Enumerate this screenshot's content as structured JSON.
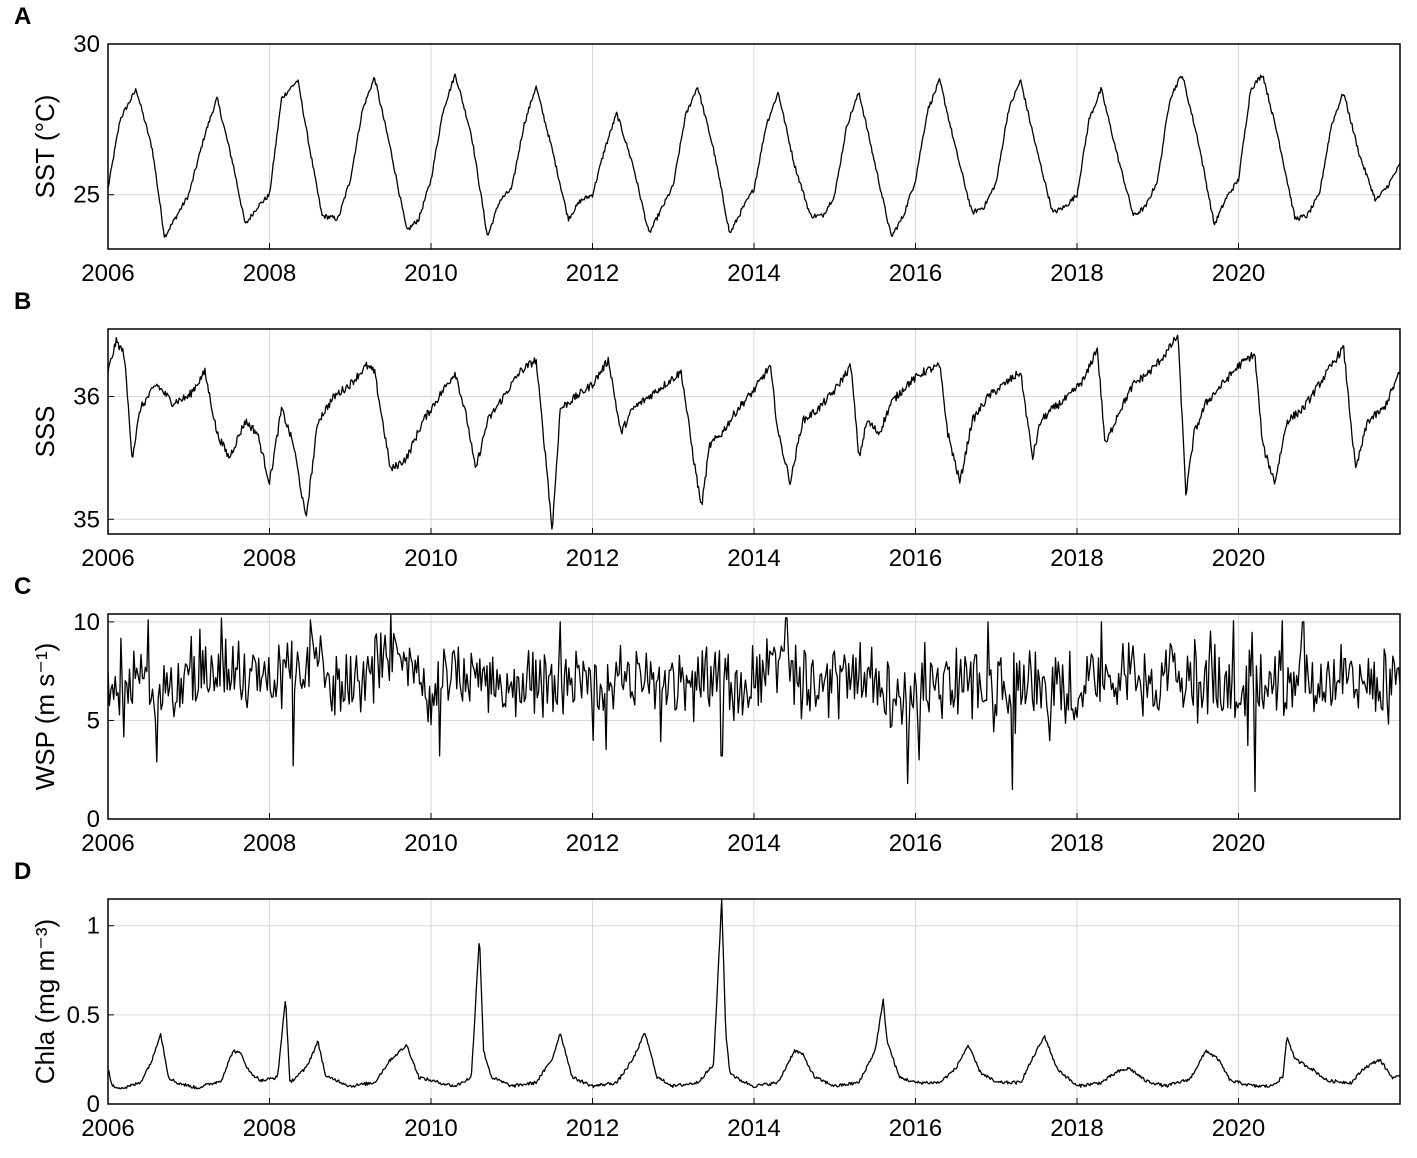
{
  "chart_data": [
    {
      "type": "line",
      "panel_letter": "A",
      "ylabel": "SST (°C)",
      "xlim": [
        2006,
        2022
      ],
      "ylim": [
        23.2,
        30
      ],
      "xticks": [
        2006,
        2008,
        2010,
        2012,
        2014,
        2016,
        2018,
        2020
      ],
      "yticks": [
        25,
        30
      ],
      "grid": true,
      "series": [
        {
          "x": [
            2006.0,
            2006.15,
            2006.35,
            2006.55,
            2006.7,
            2006.85,
            2007.0,
            2007.2,
            2007.35,
            2007.55,
            2007.7,
            2007.85,
            2008.0,
            2008.15,
            2008.35,
            2008.5,
            2008.65,
            2008.85,
            2009.0,
            2009.15,
            2009.3,
            2009.5,
            2009.7,
            2009.85,
            2010.0,
            2010.15,
            2010.3,
            2010.5,
            2010.7,
            2010.85,
            2011.0,
            2011.15,
            2011.3,
            2011.5,
            2011.7,
            2011.85,
            2012.0,
            2012.15,
            2012.3,
            2012.5,
            2012.7,
            2012.85,
            2013.0,
            2013.15,
            2013.3,
            2013.5,
            2013.7,
            2013.85,
            2014.0,
            2014.15,
            2014.3,
            2014.5,
            2014.7,
            2014.85,
            2015.0,
            2015.15,
            2015.3,
            2015.5,
            2015.7,
            2015.85,
            2016.0,
            2016.15,
            2016.3,
            2016.5,
            2016.7,
            2016.85,
            2017.0,
            2017.15,
            2017.3,
            2017.5,
            2017.7,
            2017.85,
            2018.0,
            2018.15,
            2018.3,
            2018.5,
            2018.7,
            2018.85,
            2019.0,
            2019.15,
            2019.3,
            2019.5,
            2019.7,
            2019.85,
            2020.0,
            2020.15,
            2020.3,
            2020.5,
            2020.7,
            2020.85,
            2021.0,
            2021.15,
            2021.3,
            2021.5,
            2021.7,
            2021.85,
            2022.0
          ],
          "y": [
            25.2,
            27.5,
            28.5,
            26.5,
            23.6,
            24.3,
            25.0,
            27.0,
            28.2,
            26.0,
            24.0,
            24.6,
            25.0,
            28.2,
            28.8,
            26.5,
            24.3,
            24.2,
            25.5,
            27.8,
            28.9,
            26.5,
            23.8,
            24.2,
            25.5,
            27.8,
            29.0,
            27.0,
            23.6,
            24.8,
            25.2,
            27.3,
            28.6,
            26.5,
            24.2,
            24.8,
            25.0,
            26.5,
            27.7,
            26.0,
            23.7,
            24.5,
            25.3,
            27.6,
            28.6,
            26.5,
            23.7,
            24.5,
            25.2,
            27.3,
            28.4,
            26.0,
            24.3,
            24.3,
            25.0,
            27.3,
            28.4,
            26.0,
            23.6,
            24.3,
            25.5,
            27.8,
            28.8,
            26.5,
            24.4,
            24.6,
            25.4,
            27.8,
            28.8,
            26.5,
            24.4,
            24.6,
            25.0,
            27.5,
            28.5,
            26.3,
            24.3,
            24.6,
            25.5,
            28.2,
            29.0,
            26.8,
            24.0,
            24.9,
            25.5,
            28.5,
            29.0,
            26.8,
            24.2,
            24.3,
            25.0,
            27.3,
            28.4,
            26.3,
            24.8,
            25.3,
            26.0
          ]
        }
      ]
    },
    {
      "type": "line",
      "panel_letter": "B",
      "ylabel": "SSS",
      "xlim": [
        2006,
        2022
      ],
      "ylim": [
        34.88,
        36.55
      ],
      "xticks": [
        2006,
        2008,
        2010,
        2012,
        2014,
        2016,
        2018,
        2020
      ],
      "yticks": [
        35,
        36
      ],
      "grid": true,
      "series": [
        {
          "x": [
            2006.0,
            2006.1,
            2006.2,
            2006.3,
            2006.4,
            2006.6,
            2006.8,
            2007.0,
            2007.2,
            2007.35,
            2007.5,
            2007.7,
            2007.85,
            2008.0,
            2008.15,
            2008.3,
            2008.45,
            2008.6,
            2008.8,
            2009.0,
            2009.2,
            2009.3,
            2009.5,
            2009.7,
            2009.9,
            2010.1,
            2010.3,
            2010.45,
            2010.55,
            2010.7,
            2010.9,
            2011.1,
            2011.3,
            2011.45,
            2011.5,
            2011.6,
            2011.8,
            2012.0,
            2012.2,
            2012.35,
            2012.5,
            2012.7,
            2012.9,
            2013.1,
            2013.25,
            2013.35,
            2013.45,
            2013.6,
            2013.8,
            2014.0,
            2014.2,
            2014.3,
            2014.45,
            2014.6,
            2014.8,
            2015.0,
            2015.2,
            2015.3,
            2015.4,
            2015.55,
            2015.7,
            2015.9,
            2016.1,
            2016.3,
            2016.4,
            2016.55,
            2016.7,
            2016.9,
            2017.1,
            2017.3,
            2017.45,
            2017.55,
            2017.7,
            2017.9,
            2018.1,
            2018.25,
            2018.35,
            2018.5,
            2018.7,
            2018.9,
            2019.1,
            2019.25,
            2019.35,
            2019.45,
            2019.6,
            2019.8,
            2020.0,
            2020.2,
            2020.3,
            2020.45,
            2020.6,
            2020.8,
            2021.0,
            2021.2,
            2021.3,
            2021.45,
            2021.6,
            2021.8,
            2022.0
          ],
          "y": [
            36.2,
            36.45,
            36.35,
            35.5,
            35.9,
            36.1,
            35.95,
            36.0,
            36.2,
            35.7,
            35.5,
            35.8,
            35.7,
            35.3,
            35.9,
            35.6,
            35.0,
            35.8,
            36.0,
            36.1,
            36.25,
            36.2,
            35.4,
            35.5,
            35.8,
            36.0,
            36.2,
            35.8,
            35.4,
            35.8,
            36.0,
            36.2,
            36.3,
            35.3,
            34.9,
            35.9,
            36.0,
            36.1,
            36.3,
            35.7,
            35.9,
            36.0,
            36.1,
            36.2,
            35.5,
            35.1,
            35.6,
            35.7,
            35.9,
            36.05,
            36.25,
            35.7,
            35.3,
            35.8,
            35.9,
            36.05,
            36.25,
            35.5,
            35.8,
            35.7,
            35.95,
            36.1,
            36.2,
            36.25,
            35.7,
            35.3,
            35.8,
            36.0,
            36.1,
            36.2,
            35.5,
            35.8,
            35.9,
            36.0,
            36.15,
            36.4,
            35.6,
            35.85,
            36.1,
            36.2,
            36.35,
            36.5,
            35.2,
            35.7,
            35.95,
            36.1,
            36.25,
            36.35,
            35.6,
            35.3,
            35.8,
            35.9,
            36.1,
            36.3,
            36.4,
            35.4,
            35.8,
            35.9,
            36.2
          ]
        }
      ]
    },
    {
      "type": "line",
      "panel_letter": "C",
      "ylabel": "WSP (m s⁻¹)",
      "xlim": [
        2006,
        2022
      ],
      "ylim": [
        0,
        10.4
      ],
      "xticks": [
        2006,
        2008,
        2010,
        2012,
        2014,
        2016,
        2018,
        2020
      ],
      "yticks": [
        0,
        5,
        10
      ],
      "grid": true,
      "series": [
        {
          "x": [
            2006.0,
            2006.3,
            2006.6,
            2006.9,
            2007.2,
            2007.5,
            2007.8,
            2008.0,
            2008.3,
            2008.6,
            2008.9,
            2009.2,
            2009.5,
            2009.8,
            2010.0,
            2010.3,
            2010.6,
            2010.9,
            2011.2,
            2011.5,
            2011.8,
            2012.0,
            2012.3,
            2012.6,
            2012.9,
            2013.2,
            2013.5,
            2013.8,
            2014.0,
            2014.3,
            2014.6,
            2014.9,
            2015.2,
            2015.5,
            2015.8,
            2016.0,
            2016.3,
            2016.6,
            2016.9,
            2017.2,
            2017.5,
            2017.8,
            2018.0,
            2018.3,
            2018.6,
            2018.9,
            2019.2,
            2019.5,
            2019.8,
            2020.0,
            2020.3,
            2020.6,
            2020.9,
            2021.2,
            2021.5,
            2021.8,
            2022.0
          ],
          "y": [
            7.0,
            7.5,
            6.8,
            6.5,
            7.5,
            8.0,
            7.0,
            6.8,
            7.8,
            7.9,
            6.8,
            7.0,
            8.3,
            7.2,
            6.5,
            7.8,
            7.5,
            6.5,
            6.8,
            7.0,
            7.2,
            6.8,
            7.5,
            7.2,
            6.5,
            6.8,
            7.2,
            6.6,
            7.5,
            7.8,
            6.8,
            6.5,
            7.5,
            7.0,
            6.4,
            6.3,
            7.0,
            6.8,
            6.5,
            7.0,
            7.2,
            6.8,
            6.8,
            7.0,
            7.3,
            6.5,
            7.0,
            7.2,
            6.8,
            6.6,
            7.1,
            7.0,
            6.8,
            7.0,
            7.2,
            6.9,
            7.2
          ],
          "noise_amplitude": 1.5,
          "minima": [
            [
              2006.6,
              2.9
            ],
            [
              2008.3,
              2.7
            ],
            [
              2010.1,
              3.2
            ],
            [
              2013.6,
              3.2
            ],
            [
              2015.9,
              1.8
            ],
            [
              2016.05,
              3.0
            ],
            [
              2017.2,
              1.5
            ],
            [
              2020.2,
              1.4
            ]
          ],
          "maxima": [
            [
              2006.5,
              10.1
            ],
            [
              2007.4,
              10.2
            ],
            [
              2008.5,
              10.1
            ],
            [
              2009.5,
              10.4
            ],
            [
              2011.6,
              10.0
            ],
            [
              2014.4,
              10.2
            ],
            [
              2016.9,
              10.0
            ],
            [
              2018.3,
              10.0
            ],
            [
              2020.8,
              10.0
            ]
          ]
        }
      ]
    },
    {
      "type": "line",
      "panel_letter": "D",
      "ylabel": "Chla (mg m⁻³)",
      "xlim": [
        2006,
        2022
      ],
      "ylim": [
        0,
        1.15
      ],
      "xticks": [
        2006,
        2008,
        2010,
        2012,
        2014,
        2016,
        2018,
        2020
      ],
      "yticks": [
        0,
        0.5,
        1
      ],
      "grid": true,
      "series": [
        {
          "x": [
            2006.0,
            2006.05,
            2006.2,
            2006.4,
            2006.55,
            2006.65,
            2006.75,
            2006.85,
            2007.1,
            2007.4,
            2007.55,
            2007.65,
            2007.75,
            2007.9,
            2008.1,
            2008.2,
            2008.25,
            2008.3,
            2008.45,
            2008.6,
            2008.7,
            2008.8,
            2009.0,
            2009.3,
            2009.5,
            2009.7,
            2009.85,
            2010.1,
            2010.3,
            2010.5,
            2010.6,
            2010.65,
            2010.75,
            2011.0,
            2011.3,
            2011.5,
            2011.6,
            2011.75,
            2012.0,
            2012.3,
            2012.5,
            2012.65,
            2012.8,
            2013.0,
            2013.3,
            2013.5,
            2013.6,
            2013.65,
            2013.7,
            2013.8,
            2014.0,
            2014.3,
            2014.5,
            2014.6,
            2014.75,
            2015.0,
            2015.3,
            2015.5,
            2015.6,
            2015.65,
            2015.8,
            2016.0,
            2016.3,
            2016.5,
            2016.65,
            2016.8,
            2017.0,
            2017.3,
            2017.5,
            2017.6,
            2017.75,
            2018.0,
            2018.3,
            2018.5,
            2018.65,
            2018.85,
            2019.1,
            2019.4,
            2019.6,
            2019.75,
            2019.9,
            2020.2,
            2020.4,
            2020.55,
            2020.6,
            2020.7,
            2020.9,
            2021.1,
            2021.4,
            2021.55,
            2021.75,
            2021.9,
            2022.0
          ],
          "y": [
            0.2,
            0.1,
            0.09,
            0.12,
            0.25,
            0.4,
            0.15,
            0.12,
            0.09,
            0.13,
            0.3,
            0.28,
            0.18,
            0.13,
            0.15,
            0.6,
            0.12,
            0.14,
            0.2,
            0.35,
            0.15,
            0.14,
            0.1,
            0.12,
            0.25,
            0.33,
            0.15,
            0.12,
            0.1,
            0.15,
            0.95,
            0.3,
            0.15,
            0.1,
            0.12,
            0.25,
            0.4,
            0.15,
            0.1,
            0.12,
            0.25,
            0.4,
            0.15,
            0.1,
            0.12,
            0.22,
            1.15,
            0.4,
            0.18,
            0.14,
            0.1,
            0.12,
            0.3,
            0.28,
            0.15,
            0.1,
            0.12,
            0.3,
            0.58,
            0.35,
            0.15,
            0.12,
            0.12,
            0.2,
            0.33,
            0.18,
            0.12,
            0.12,
            0.3,
            0.38,
            0.2,
            0.1,
            0.12,
            0.18,
            0.2,
            0.13,
            0.1,
            0.14,
            0.3,
            0.25,
            0.13,
            0.1,
            0.1,
            0.15,
            0.38,
            0.25,
            0.2,
            0.13,
            0.12,
            0.2,
            0.25,
            0.15,
            0.15
          ]
        }
      ]
    }
  ]
}
